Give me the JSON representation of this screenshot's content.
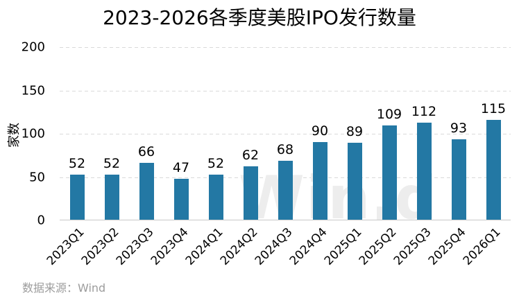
{
  "watermark": {
    "text": "Wind",
    "part1": "Win",
    "part2": "d"
  },
  "source_note": "数据来源：Wind",
  "colors": {
    "bar": "#2378a4",
    "gridline": "#d9d9d9",
    "baseline": "#c9c9c9",
    "source_text": "#9c9c9c",
    "watermark": "#ededed"
  },
  "chart_data": {
    "type": "bar",
    "title": "2023-2026各季度美股IPO发行数量",
    "categories": [
      "2023Q1",
      "2023Q2",
      "2023Q3",
      "2023Q4",
      "2024Q1",
      "2024Q2",
      "2024Q3",
      "2024Q4",
      "2025Q1",
      "2025Q2",
      "2025Q3",
      "2025Q4",
      "2026Q1"
    ],
    "values": [
      52,
      52,
      66,
      47,
      52,
      62,
      68,
      90,
      89,
      109,
      112,
      93,
      115
    ],
    "xlabel": "",
    "ylabel": "家数",
    "ylim": [
      0,
      200
    ],
    "yticks": [
      0,
      50,
      100,
      150,
      200
    ],
    "grid": true,
    "grid_style": "dashed",
    "legend": false,
    "bar_color": "#2378a4",
    "value_labels": true,
    "x_tick_rotation": -45
  }
}
